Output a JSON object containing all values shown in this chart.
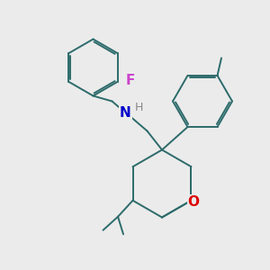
{
  "background_color": "#ebebeb",
  "bond_color": "#2d6b6b",
  "F_color": "#cc44cc",
  "N_color": "#0000cc",
  "O_color": "#dd0000",
  "H_color": "#888888",
  "lw": 1.4,
  "font_size_atom": 11,
  "font_size_H": 9,
  "xlim": [
    0,
    10
  ],
  "ylim": [
    0,
    10
  ]
}
